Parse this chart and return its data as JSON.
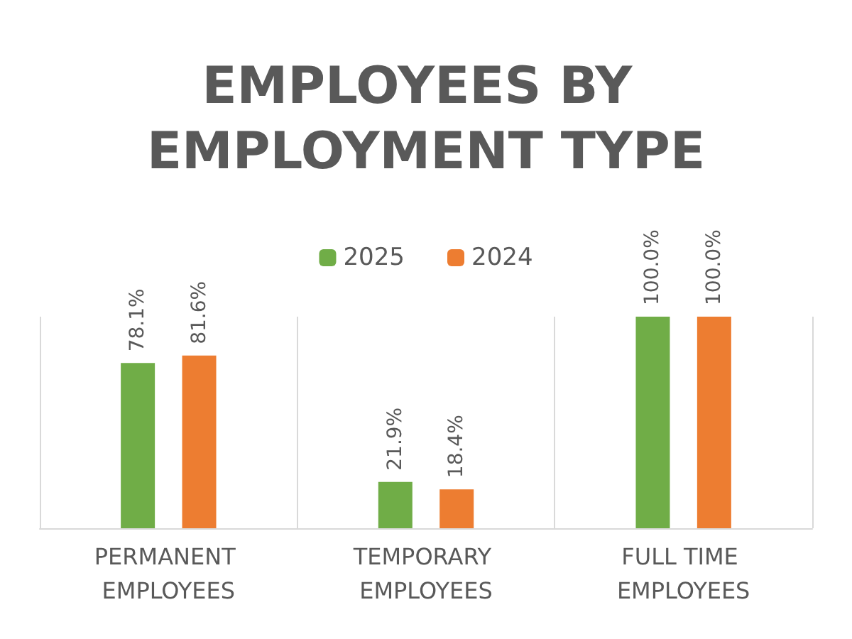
{
  "chart_data": {
    "type": "bar",
    "title": "EMPLOYEES BY EMPLOYMENT TYPE",
    "categories": [
      "PERMANENT EMPLOYEES",
      "TEMPORARY EMPLOYEES",
      "FULL TIME EMPLOYEES"
    ],
    "series": [
      {
        "name": "2025",
        "color": "#70ad47",
        "values": [
          78.1,
          21.9,
          100.0
        ],
        "value_labels": [
          "78.1%",
          "21.9%",
          "100.0%"
        ]
      },
      {
        "name": "2024",
        "color": "#ed7d31",
        "values": [
          81.6,
          18.4,
          100.0
        ],
        "value_labels": [
          "81.6%",
          "18.4%",
          "100.0%"
        ]
      }
    ],
    "legend": "top",
    "grid": "x"
  }
}
